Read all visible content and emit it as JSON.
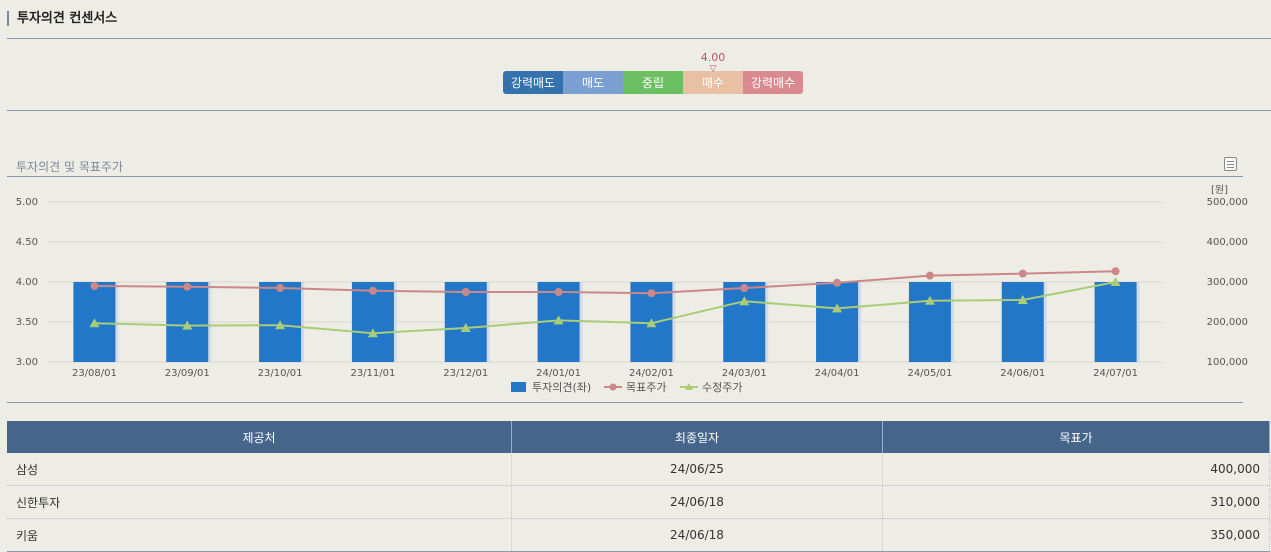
{
  "section_title": "투자의견 컨센서스",
  "opinion_scale": {
    "segments": [
      {
        "label": "강력매도",
        "color": "#3572ad"
      },
      {
        "label": "매도",
        "color": "#7c9fd2"
      },
      {
        "label": "중립",
        "color": "#6cbf62"
      },
      {
        "label": "매수",
        "color": "#e8c0a4"
      },
      {
        "label": "강력매수",
        "color": "#d98a90"
      }
    ],
    "current_value": "4.00",
    "marker_symbol": "▽"
  },
  "chart_section_title": "투자의견 및 목표주가",
  "chart_data": {
    "type": "bar",
    "title": "",
    "categories": [
      "23/08/01",
      "23/09/01",
      "23/10/01",
      "23/11/01",
      "23/12/01",
      "24/01/01",
      "24/02/01",
      "24/03/01",
      "24/04/01",
      "24/05/01",
      "24/06/01",
      "24/07/01"
    ],
    "left_axis": {
      "min": 3.0,
      "max": 5.0,
      "ticks": [
        "3.00",
        "3.50",
        "4.00",
        "4.50",
        "5.00"
      ]
    },
    "right_axis": {
      "unit": "[원]",
      "min": 100000,
      "max": 500000,
      "ticks": [
        "100,000",
        "200,000",
        "300,000",
        "400,000",
        "500,000"
      ]
    },
    "series": [
      {
        "name": "투자의견(좌)",
        "type": "bar",
        "axis": "left",
        "color": "#2277c8",
        "values": [
          4.0,
          4.0,
          4.0,
          4.0,
          4.0,
          4.0,
          4.0,
          4.0,
          4.0,
          4.0,
          4.0,
          4.0
        ]
      },
      {
        "name": "목표주가",
        "type": "line",
        "axis": "right",
        "color": "#cc8888",
        "values": [
          290000,
          288000,
          285000,
          278000,
          275000,
          275000,
          272000,
          285000,
          298000,
          316000,
          321000,
          327000
        ]
      },
      {
        "name": "수정주가",
        "type": "line",
        "axis": "right",
        "color": "#a8cc78",
        "values": [
          197000,
          191000,
          192000,
          172000,
          185000,
          204000,
          197000,
          252000,
          234000,
          253000,
          255000,
          300000
        ]
      }
    ],
    "grid": true,
    "legend": "bottom"
  },
  "table": {
    "headers": [
      "제공처",
      "최종일자",
      "목표가"
    ],
    "rows": [
      [
        "삼성",
        "24/06/25",
        "400,000"
      ],
      [
        "신한투자",
        "24/06/18",
        "310,000"
      ],
      [
        "키움",
        "24/06/18",
        "350,000"
      ]
    ]
  }
}
